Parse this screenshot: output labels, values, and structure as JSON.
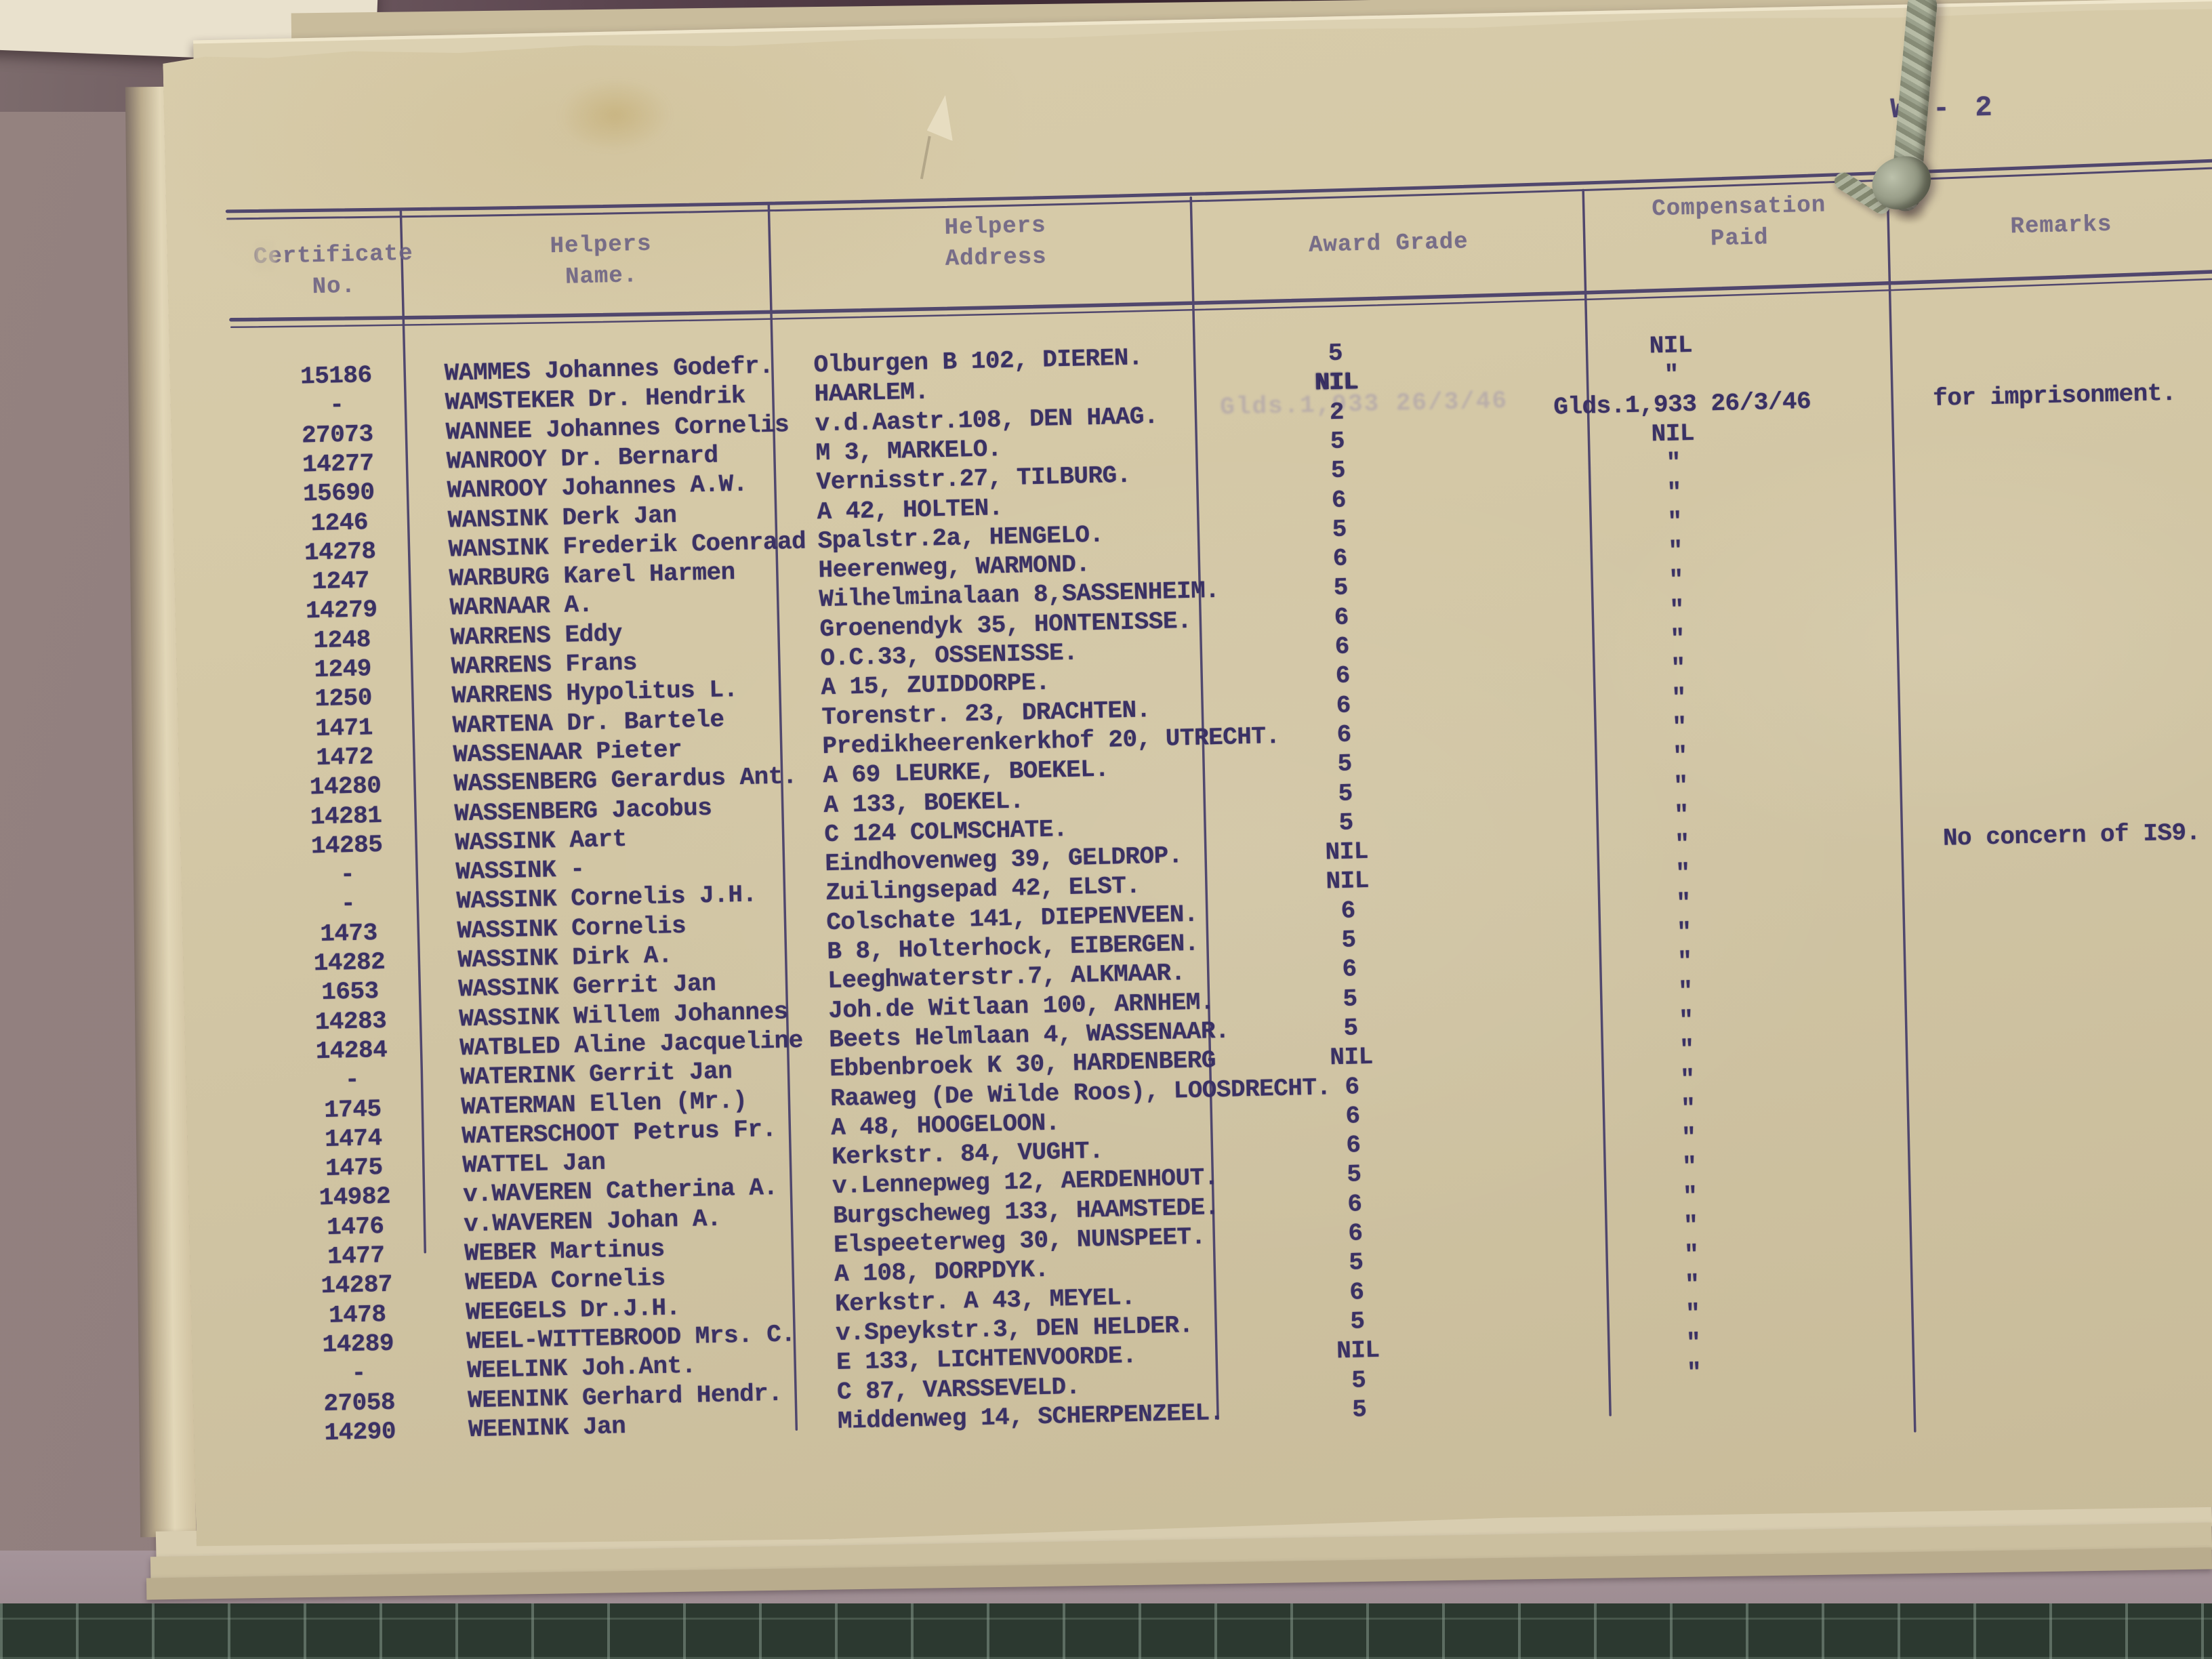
{
  "page": {
    "page_number": "W - 2",
    "ghost_stamp": "Glds.1,933 26/3/46"
  },
  "table": {
    "headers": [
      {
        "line1": "Certificate",
        "line2": "No."
      },
      {
        "line1": "Helpers",
        "line2": "Name."
      },
      {
        "line1": "Helpers",
        "line2": "Address"
      },
      {
        "line1": "Award Grade",
        "line2": ""
      },
      {
        "line1": "Compensation",
        "line2": "Paid"
      },
      {
        "line1": "Remarks",
        "line2": ""
      }
    ],
    "rows": [
      {
        "cert": "15186",
        "name": "WAMMES Johannes Godefr.",
        "address": "Olburgen B 102, DIEREN.",
        "grade": "5",
        "compensation": "NIL",
        "remarks": ""
      },
      {
        "cert": "-",
        "name": "WAMSTEKER Dr. Hendrik",
        "address": "HAARLEM.",
        "grade": "NIL",
        "grade_heavy": true,
        "compensation": "\"",
        "remarks": ""
      },
      {
        "cert": "27073",
        "name": "WANNEE Johannes Cornelis",
        "address": "v.d.Aastr.108, DEN HAAG.",
        "grade": "2",
        "compensation": "Glds.1,933 26/3/46",
        "remarks": "for imprisonment."
      },
      {
        "cert": "14277",
        "name": "WANROOY Dr. Bernard",
        "address": "M 3, MARKELO.",
        "grade": "5",
        "compensation": "NIL",
        "remarks": ""
      },
      {
        "cert": "15690",
        "name": "WANROOY Johannes A.W.",
        "address": "Vernisstr.27, TILBURG.",
        "grade": "5",
        "compensation": "\"",
        "remarks": ""
      },
      {
        "cert": "1246",
        "name": "WANSINK Derk Jan",
        "address": "A 42, HOLTEN.",
        "grade": "6",
        "compensation": "\"",
        "remarks": ""
      },
      {
        "cert": "14278",
        "name": "WANSINK Frederik Coenraad",
        "address": "Spalstr.2a, HENGELO.",
        "grade": "5",
        "compensation": "\"",
        "remarks": ""
      },
      {
        "cert": "1247",
        "name": "WARBURG Karel Harmen",
        "address": "Heerenweg, WARMOND.",
        "grade": "6",
        "compensation": "\"",
        "remarks": ""
      },
      {
        "cert": "14279",
        "name": "WARNAAR A.",
        "address": "Wilhelminalaan 8,SASSENHEIM.",
        "grade": "5",
        "compensation": "\"",
        "remarks": ""
      },
      {
        "cert": "1248",
        "name": "WARRENS Eddy",
        "address": "Groenendyk 35, HONTENISSE.",
        "grade": "6",
        "compensation": "\"",
        "remarks": ""
      },
      {
        "cert": "1249",
        "name": "WARRENS Frans",
        "address": "O.C.33, OSSENISSE.",
        "grade": "6",
        "compensation": "\"",
        "remarks": ""
      },
      {
        "cert": "1250",
        "name": "WARRENS Hypolitus L.",
        "address": "A 15, ZUIDDORPE.",
        "grade": "6",
        "compensation": "\"",
        "remarks": ""
      },
      {
        "cert": "1471",
        "name": "WARTENA Dr. Bartele",
        "address": "Torenstr. 23, DRACHTEN.",
        "grade": "6",
        "compensation": "\"",
        "remarks": ""
      },
      {
        "cert": "1472",
        "name": "WASSENAAR Pieter",
        "address": "Predikheerenkerkhof 20, UTRECHT.",
        "grade": "6",
        "compensation": "\"",
        "remarks": ""
      },
      {
        "cert": "14280",
        "name": "WASSENBERG Gerardus Ant.",
        "address": "A 69 LEURKE, BOEKEL.",
        "grade": "5",
        "compensation": "\"",
        "remarks": ""
      },
      {
        "cert": "14281",
        "name": "WASSENBERG Jacobus",
        "address": "A 133, BOEKEL.",
        "grade": "5",
        "compensation": "\"",
        "remarks": ""
      },
      {
        "cert": "14285",
        "name": "WASSINK Aart",
        "address": "C 124 COLMSCHATE.",
        "grade": "5",
        "compensation": "\"",
        "remarks": ""
      },
      {
        "cert": "-",
        "name": "WASSINK -",
        "address": "Eindhovenweg 39, GELDROP.",
        "grade": "NIL",
        "compensation": "\"",
        "remarks": "No concern of IS9."
      },
      {
        "cert": "-",
        "name": "WASSINK Cornelis J.H.",
        "address": "Zuilingsepad 42, ELST.",
        "grade": "NIL",
        "compensation": "\"",
        "remarks": ""
      },
      {
        "cert": "1473",
        "name": "WASSINK Cornelis",
        "address": "Colschate 141, DIEPENVEEN.",
        "grade": "6",
        "compensation": "\"",
        "remarks": ""
      },
      {
        "cert": "14282",
        "name": "WASSINK Dirk A.",
        "address": "B 8, Holterhock, EIBERGEN.",
        "grade": "5",
        "compensation": "\"",
        "remarks": ""
      },
      {
        "cert": "1653",
        "name": "WASSINK Gerrit Jan",
        "address": "Leeghwaterstr.7, ALKMAAR.",
        "grade": "6",
        "compensation": "\"",
        "remarks": ""
      },
      {
        "cert": "14283",
        "name": "WASSINK Willem Johannes",
        "address": "Joh.de Witlaan 100, ARNHEM.",
        "grade": "5",
        "compensation": "\"",
        "remarks": ""
      },
      {
        "cert": "14284",
        "name": "WATBLED Aline Jacqueline",
        "address": "Beets Helmlaan 4, WASSENAAR.",
        "grade": "5",
        "compensation": "\"",
        "remarks": ""
      },
      {
        "cert": "-",
        "name": "WATERINK Gerrit Jan",
        "address": "Ebbenbroek K 30, HARDENBERG",
        "grade": "NIL",
        "compensation": "\"",
        "remarks": ""
      },
      {
        "cert": "1745",
        "name": "WATERMAN Ellen (Mr.)",
        "address": "Raaweg (De Wilde Roos), LOOSDRECHT.",
        "grade": "6",
        "compensation": "\"",
        "remarks": ""
      },
      {
        "cert": "1474",
        "name": "WATERSCHOOT Petrus Fr.",
        "address": "A 48, HOOGELOON.",
        "grade": "6",
        "compensation": "\"",
        "remarks": ""
      },
      {
        "cert": "1475",
        "name": "WATTEL Jan",
        "address": "Kerkstr. 84, VUGHT.",
        "grade": "6",
        "compensation": "\"",
        "remarks": ""
      },
      {
        "cert": "14982",
        "name": "v.WAVEREN Catherina A.",
        "address": "v.Lennepweg 12, AERDENHOUT.",
        "grade": "5",
        "compensation": "\"",
        "remarks": ""
      },
      {
        "cert": "1476",
        "name": "v.WAVEREN Johan A.",
        "address": "Burgscheweg 133, HAAMSTEDE.",
        "grade": "6",
        "compensation": "\"",
        "remarks": ""
      },
      {
        "cert": "1477",
        "name": "WEBER Martinus",
        "address": "Elspeeterweg 30, NUNSPEET.",
        "grade": "6",
        "compensation": "\"",
        "remarks": ""
      },
      {
        "cert": "14287",
        "name": "WEEDA Cornelis",
        "address": "A 108, DORPDYK.",
        "grade": "5",
        "compensation": "\"",
        "remarks": ""
      },
      {
        "cert": "1478",
        "name": "WEEGELS Dr.J.H.",
        "address": "Kerkstr. A 43, MEYEL.",
        "grade": "6",
        "compensation": "\"",
        "remarks": ""
      },
      {
        "cert": "14289",
        "name": "WEEL-WITTEBROOD Mrs. C.",
        "address": "v.Speykstr.3, DEN HELDER.",
        "grade": "5",
        "compensation": "\"",
        "remarks": ""
      },
      {
        "cert": "-",
        "name": "WEELINK Joh.Ant.",
        "address": "E 133, LICHTENVOORDE.",
        "grade": "NIL",
        "compensation": "\"",
        "remarks": ""
      },
      {
        "cert": "27058",
        "name": "WEENINK Gerhard Hendr.",
        "address": "C 87, VARSSEVELD.",
        "grade": "5",
        "compensation": "\"",
        "remarks": ""
      },
      {
        "cert": "14290",
        "name": "WEENINK Jan",
        "address": "Middenweg 14, SCHERPENZEEL.",
        "grade": "5",
        "compensation": "",
        "remarks": ""
      }
    ]
  }
}
